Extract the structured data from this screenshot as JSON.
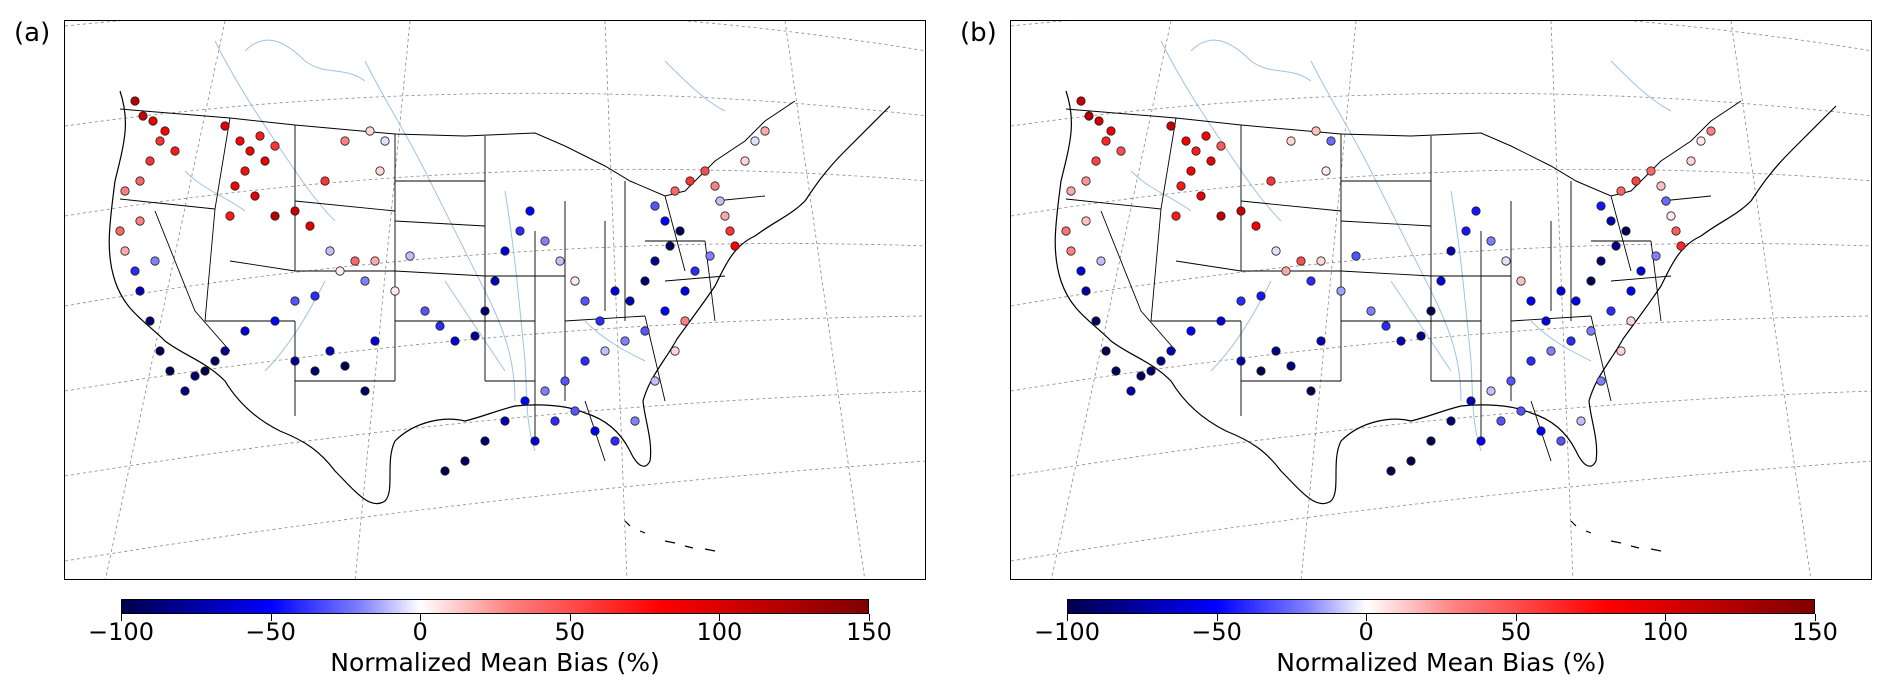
{
  "panels": [
    {
      "label": "(a)"
    },
    {
      "label": "(b)"
    }
  ],
  "colorbar": {
    "title": "Normalized Mean Bias (%)",
    "ticks": [
      "−100",
      "−50",
      "0",
      "50",
      "100",
      "150"
    ],
    "range": [
      -100,
      150
    ],
    "colors": {
      "min": "#00004c",
      "neg": "#0000ff",
      "zero": "#ffffff",
      "pos": "#ff0000",
      "max": "#800000"
    }
  },
  "map": {
    "land_color": "#ffffff",
    "river_color": "#9ec3e6",
    "border_color": "#000000",
    "graticule_color": "#888888"
  }
}
